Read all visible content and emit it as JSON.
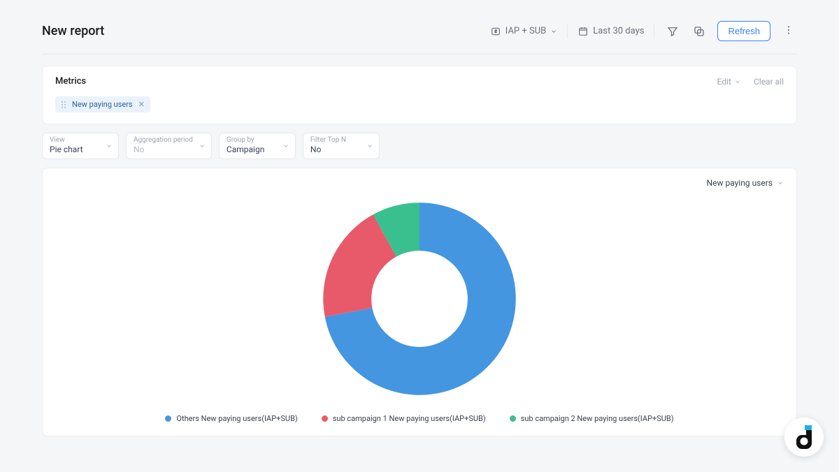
{
  "header": {
    "title": "New report",
    "scope_label": "IAP + SUB",
    "date_range": "Last 30 days",
    "refresh_label": "Refresh"
  },
  "metrics_panel": {
    "title": "Metrics",
    "edit_label": "Edit",
    "clear_label": "Clear all",
    "chips": [
      {
        "label": "New paying users"
      }
    ]
  },
  "selectors": {
    "view": {
      "label": "View",
      "value": "Pie chart",
      "muted": false
    },
    "aggregation": {
      "label": "Aggregation period",
      "value": "No",
      "muted": true
    },
    "group_by": {
      "label": "Group by",
      "value": "Campaign",
      "muted": false
    },
    "top_n": {
      "label": "Filter Top N",
      "value": "No",
      "muted": false
    }
  },
  "chart": {
    "type": "donut",
    "metric_label": "New paying users",
    "inner_radius_ratio": 0.5,
    "background_color": "#ffffff",
    "slices": [
      {
        "label": "Others New paying users(IAP+SUB)",
        "value": 72,
        "color": "#4496e0"
      },
      {
        "label": "sub campaign 1 New paying users(IAP+SUB)",
        "value": 20,
        "color": "#e85a6a"
      },
      {
        "label": "sub campaign 2 New paying users(IAP+SUB)",
        "value": 8,
        "color": "#3ac08e"
      }
    ],
    "start_angle_deg": 0,
    "legend_fontsize": 11,
    "legend_color": "#374151"
  },
  "brand": {
    "accent1": "#1eb1e7",
    "accent2": "#111111"
  }
}
